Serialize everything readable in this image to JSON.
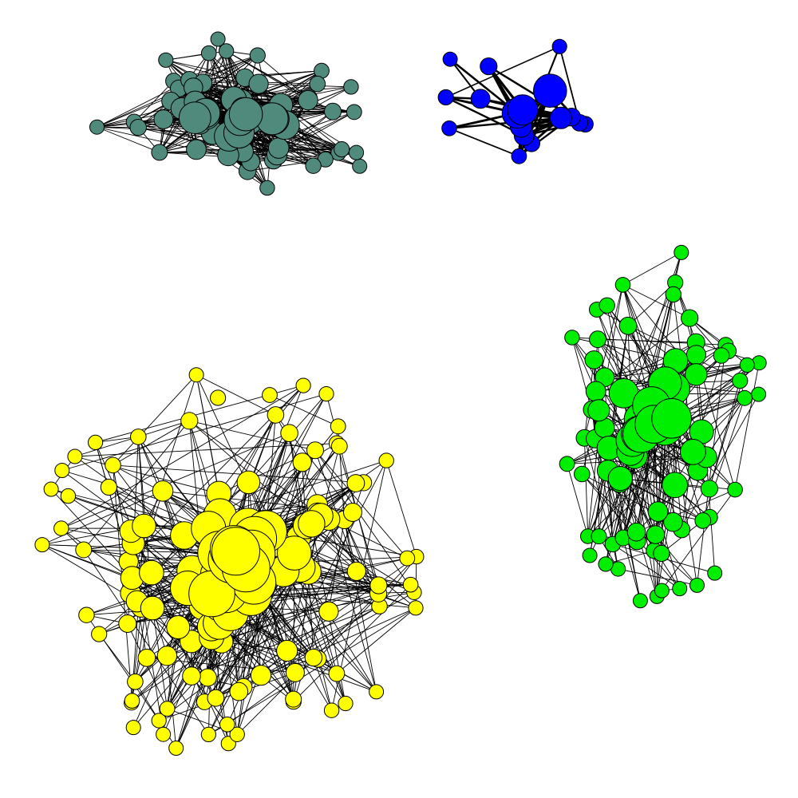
{
  "graph": {
    "type": "network",
    "background": "#ffffff",
    "edge_color": "#000000",
    "node_outline": "#000000",
    "communities": [
      {
        "id": "teal",
        "color": "#4f8a7c",
        "node_count": 60,
        "seed": 11,
        "edge_density": 0.3
      },
      {
        "id": "blue",
        "color": "#0000ff",
        "node_count": 17,
        "seed": 23,
        "edge_density": 0.55
      },
      {
        "id": "green",
        "color": "#00ee00",
        "node_count": 80,
        "seed": 37,
        "edge_density": 0.12
      },
      {
        "id": "yellow",
        "color": "#ffff00",
        "node_count": 130,
        "seed": 51,
        "edge_density": 0.09
      }
    ]
  }
}
